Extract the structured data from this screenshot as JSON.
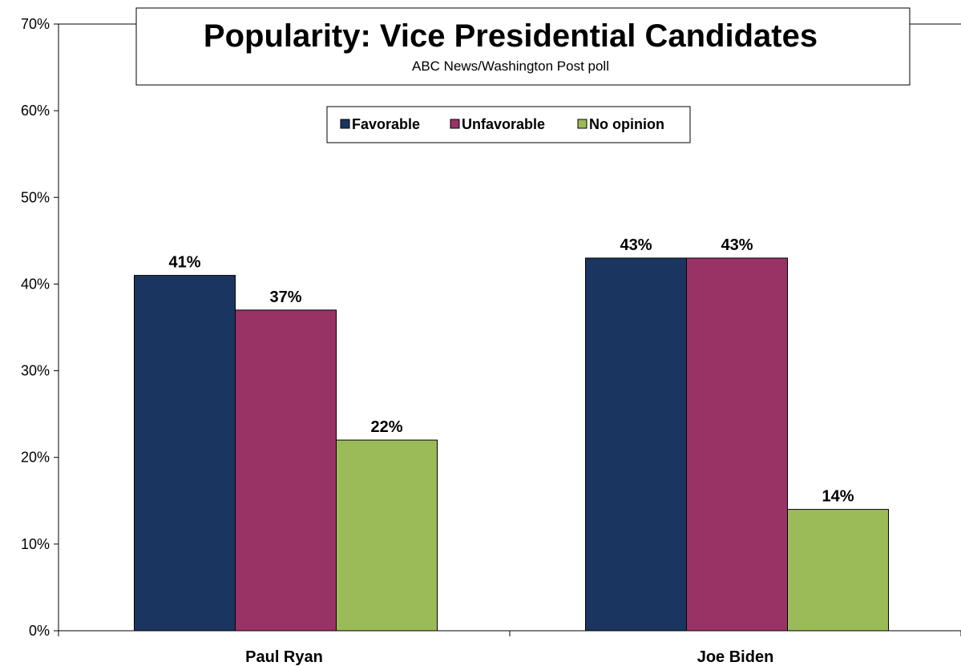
{
  "chart_data": {
    "type": "bar",
    "title": "Popularity: Vice Presidential Candidates",
    "subtitle": "ABC News/Washington Post poll",
    "categories": [
      "Paul Ryan",
      "Joe Biden"
    ],
    "series": [
      {
        "name": "Favorable",
        "values": [
          41,
          43
        ],
        "labels": [
          "41%",
          "43%"
        ],
        "color": "#1a3660"
      },
      {
        "name": "Unfavorable",
        "values": [
          37,
          43
        ],
        "labels": [
          "37%",
          "43%"
        ],
        "color": "#993366"
      },
      {
        "name": "No opinion",
        "values": [
          22,
          14
        ],
        "labels": [
          "22%",
          "14%"
        ],
        "color": "#9bbb59"
      }
    ],
    "ylim": [
      0,
      70
    ],
    "yticks": [
      0,
      10,
      20,
      30,
      40,
      50,
      60,
      70
    ],
    "ytick_labels": [
      "0%",
      "10%",
      "20%",
      "30%",
      "40%",
      "50%",
      "60%",
      "70%"
    ],
    "xlabel": "",
    "ylabel": "",
    "grid": false,
    "legend_position": "top-center"
  }
}
